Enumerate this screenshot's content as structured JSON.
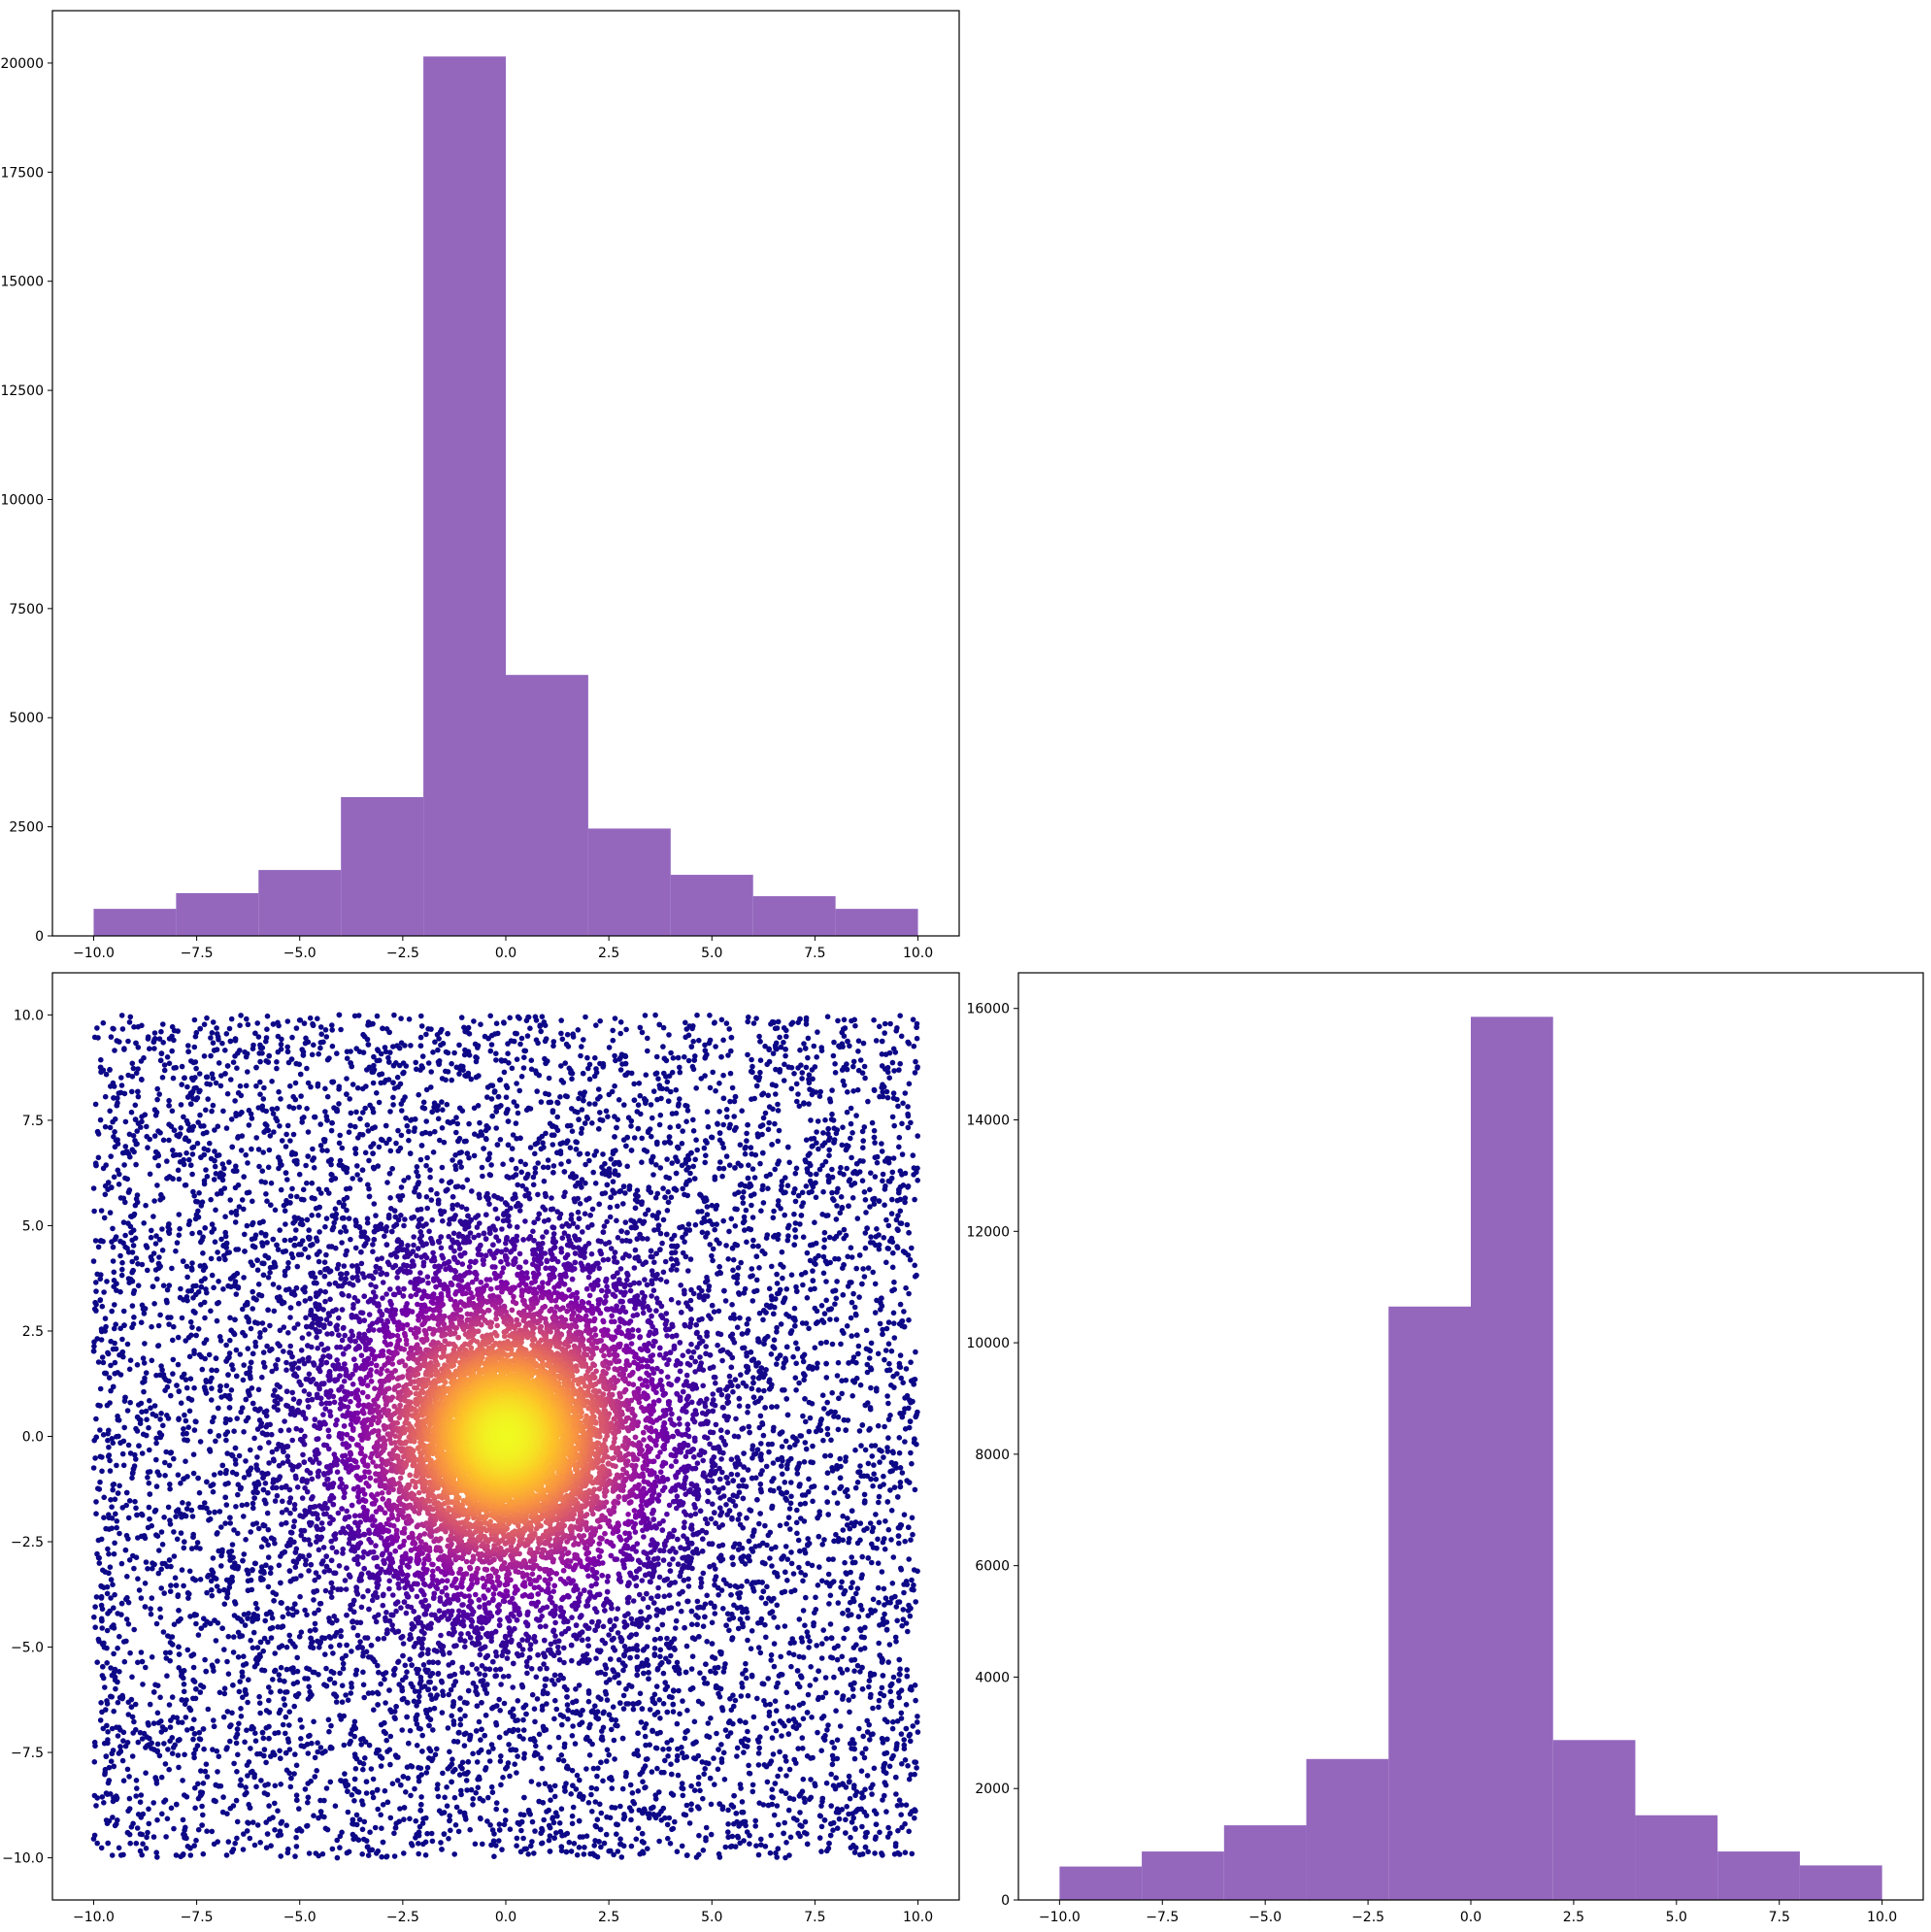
{
  "chart_data": [
    {
      "type": "bar",
      "name": "histogram-x",
      "bin_edges": [
        -10,
        -8,
        -6,
        -4,
        -2,
        0,
        2,
        4,
        6,
        8,
        10
      ],
      "values": [
        620,
        980,
        1510,
        3180,
        20150,
        5980,
        2460,
        1400,
        910,
        620
      ],
      "color": "#9467bd",
      "xlim": [
        -11,
        11
      ],
      "ylim": [
        0,
        21200
      ],
      "xticks": [
        -10,
        -7.5,
        -5,
        -2.5,
        0,
        2.5,
        5,
        7.5,
        10
      ],
      "xtick_labels": [
        "−10.0",
        "−7.5",
        "−5.0",
        "−2.5",
        "0.0",
        "2.5",
        "5.0",
        "7.5",
        "10.0"
      ],
      "yticks": [
        0,
        2500,
        5000,
        7500,
        10000,
        12500,
        15000,
        17500,
        20000
      ],
      "ytick_labels": [
        "0",
        "2500",
        "5000",
        "7500",
        "10000",
        "12500",
        "15000",
        "17500",
        "20000"
      ]
    },
    {
      "type": "scatter",
      "name": "joint-scatter",
      "description_of_points": "about 30000 points uniformly scattered in [-10,10] x [-10,10] with extra density toward the origin; color encodes closeness to (0,0) with the plasma colormap",
      "colormap": "plasma",
      "color_low": "#0d0887",
      "color_high": "#f0f921",
      "center": [
        0,
        0
      ],
      "xlim": [
        -11,
        11
      ],
      "ylim": [
        -11,
        11
      ],
      "xticks": [
        -10,
        -7.5,
        -5,
        -2.5,
        0,
        2.5,
        5,
        7.5,
        10
      ],
      "xtick_labels": [
        "−10.0",
        "−7.5",
        "−5.0",
        "−2.5",
        "0.0",
        "2.5",
        "5.0",
        "7.5",
        "10.0"
      ],
      "yticks": [
        -10,
        -7.5,
        -5,
        -2.5,
        0,
        2.5,
        5,
        7.5,
        10
      ],
      "ytick_labels": [
        "−10.0",
        "−7.5",
        "−5.0",
        "−2.5",
        "0.0",
        "2.5",
        "5.0",
        "7.5",
        "10.0"
      ]
    },
    {
      "type": "bar",
      "name": "histogram-y",
      "bin_edges": [
        -10,
        -8,
        -6,
        -4,
        -2,
        0,
        2,
        4,
        6,
        8,
        10
      ],
      "values": [
        600,
        870,
        1340,
        2530,
        10650,
        15850,
        2870,
        1520,
        870,
        620
      ],
      "color": "#9467bd",
      "xlim": [
        -11,
        11
      ],
      "ylim": [
        0,
        16640
      ],
      "xticks": [
        -10,
        -7.5,
        -5,
        -2.5,
        0,
        2.5,
        5,
        7.5,
        10
      ],
      "xtick_labels": [
        "−10.0",
        "−7.5",
        "−5.0",
        "−2.5",
        "0.0",
        "2.5",
        "5.0",
        "7.5",
        "10.0"
      ],
      "yticks": [
        0,
        2000,
        4000,
        6000,
        8000,
        10000,
        12000,
        14000,
        16000
      ],
      "ytick_labels": [
        "0",
        "2000",
        "4000",
        "6000",
        "8000",
        "10000",
        "12000",
        "14000",
        "16000"
      ]
    }
  ]
}
